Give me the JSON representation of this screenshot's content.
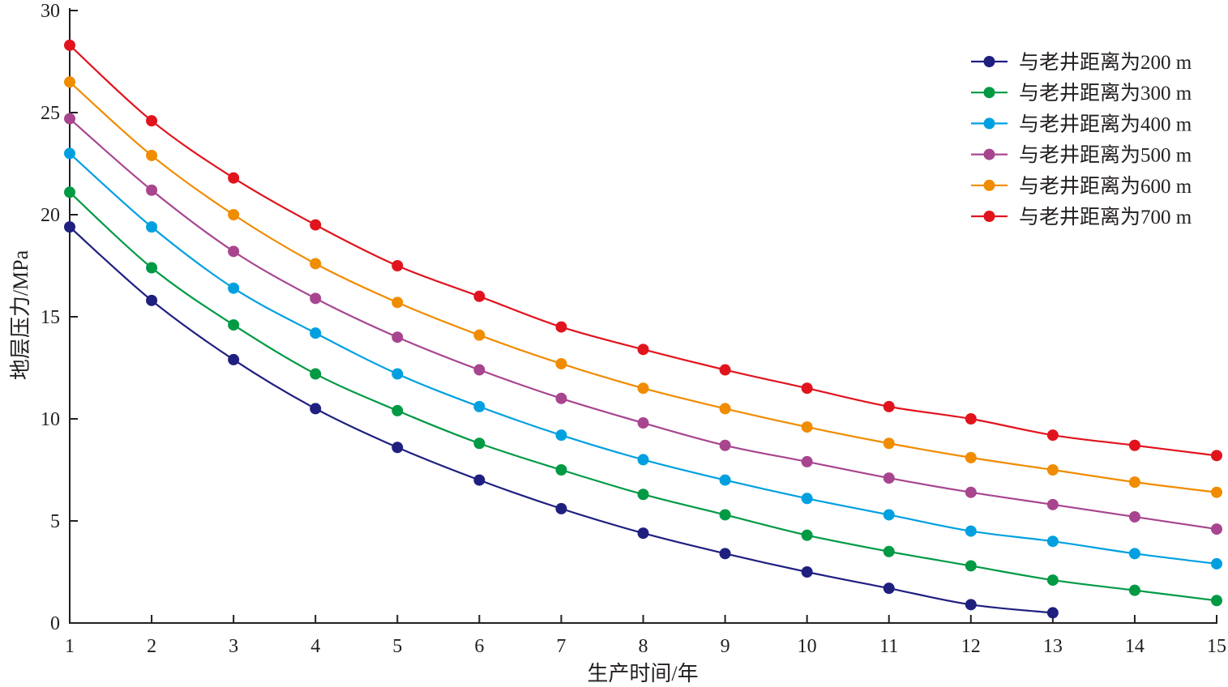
{
  "chart_data": {
    "type": "line",
    "xlabel": "生产时间/年",
    "ylabel": "地层压力/MPa",
    "xlim": [
      1,
      15
    ],
    "ylim": [
      0,
      30
    ],
    "x_ticks": [
      "1",
      "2",
      "3",
      "4",
      "5",
      "6",
      "7",
      "8",
      "9",
      "10",
      "11",
      "12",
      "13",
      "14",
      "15"
    ],
    "y_ticks": [
      "0",
      "5",
      "10",
      "15",
      "20",
      "25",
      "30"
    ],
    "grid": false,
    "legend_position": "top-right",
    "series": [
      {
        "name": "与老井距离为200 m",
        "color": "#1f1f80",
        "x": [
          1,
          2,
          3,
          4,
          5,
          6,
          7,
          8,
          9,
          10,
          11,
          12,
          13
        ],
        "y": [
          19.4,
          15.8,
          12.9,
          10.5,
          8.6,
          7.0,
          5.6,
          4.4,
          3.4,
          2.5,
          1.7,
          0.9,
          0.5
        ]
      },
      {
        "name": "与老井距离为300 m",
        "color": "#009a44",
        "x": [
          1,
          2,
          3,
          4,
          5,
          6,
          7,
          8,
          9,
          10,
          11,
          12,
          13,
          14,
          15
        ],
        "y": [
          21.1,
          17.4,
          14.6,
          12.2,
          10.4,
          8.8,
          7.5,
          6.3,
          5.3,
          4.3,
          3.5,
          2.8,
          2.1,
          1.6,
          1.1
        ]
      },
      {
        "name": "与老井距离为400 m",
        "color": "#00a0e0",
        "x": [
          1,
          2,
          3,
          4,
          5,
          6,
          7,
          8,
          9,
          10,
          11,
          12,
          13,
          14,
          15
        ],
        "y": [
          23.0,
          19.4,
          16.4,
          14.2,
          12.2,
          10.6,
          9.2,
          8.0,
          7.0,
          6.1,
          5.3,
          4.5,
          4.0,
          3.4,
          2.9
        ]
      },
      {
        "name": "与老井距离为500 m",
        "color": "#a8458f",
        "x": [
          1,
          2,
          3,
          4,
          5,
          6,
          7,
          8,
          9,
          10,
          11,
          12,
          13,
          14,
          15
        ],
        "y": [
          24.7,
          21.2,
          18.2,
          15.9,
          14.0,
          12.4,
          11.0,
          9.8,
          8.7,
          7.9,
          7.1,
          6.4,
          5.8,
          5.2,
          4.6
        ]
      },
      {
        "name": "与老井距离为600 m",
        "color": "#f08c00",
        "x": [
          1,
          2,
          3,
          4,
          5,
          6,
          7,
          8,
          9,
          10,
          11,
          12,
          13,
          14,
          15
        ],
        "y": [
          26.5,
          22.9,
          20.0,
          17.6,
          15.7,
          14.1,
          12.7,
          11.5,
          10.5,
          9.6,
          8.8,
          8.1,
          7.5,
          6.9,
          6.4
        ]
      },
      {
        "name": "与老井距离为700 m",
        "color": "#e1141e",
        "x": [
          1,
          2,
          3,
          4,
          5,
          6,
          7,
          8,
          9,
          10,
          11,
          12,
          13,
          14,
          15
        ],
        "y": [
          28.3,
          24.6,
          21.8,
          19.5,
          17.5,
          16.0,
          14.5,
          13.4,
          12.4,
          11.5,
          10.6,
          10.0,
          9.2,
          8.7,
          8.2
        ]
      }
    ]
  }
}
